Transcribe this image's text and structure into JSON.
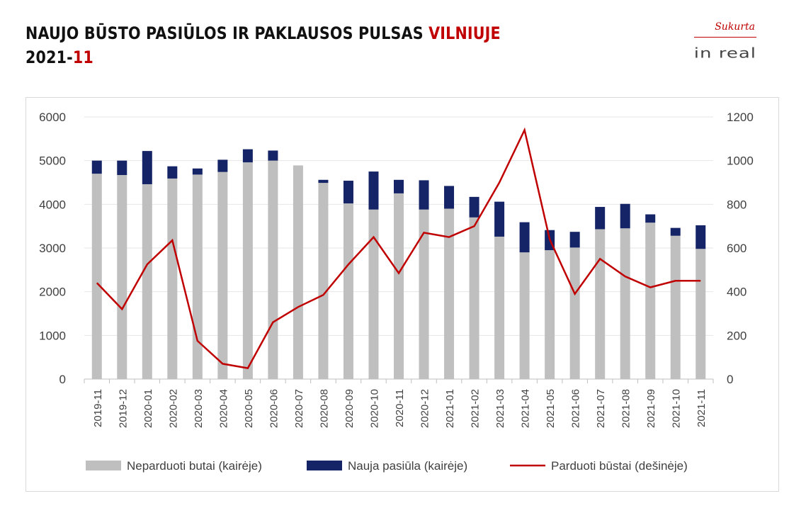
{
  "title": {
    "line1_main": "NAUJO BŪSTO PASIŪLOS IR PAKLAUSOS PULSAS ",
    "line1_accent": "VILNIUJE",
    "line2_main": "2021-",
    "line2_accent": "11"
  },
  "logo": {
    "top_text": "Sukurta",
    "bottom_text": "in real"
  },
  "colors": {
    "unsold": "#bfbfbf",
    "new_supply": "#152466",
    "sold_line": "#c00000",
    "accent": "#c00000",
    "axis_text": "#404040"
  },
  "chart_data": {
    "type": "bar",
    "categories": [
      "2019-11",
      "2019-12",
      "2020-01",
      "2020-02",
      "2020-03",
      "2020-04",
      "2020-05",
      "2020-06",
      "2020-07",
      "2020-08",
      "2020-09",
      "2020-10",
      "2020-11",
      "2020-12",
      "2021-01",
      "2021-02",
      "2021-03",
      "2021-04",
      "2021-05",
      "2021-06",
      "2021-07",
      "2021-08",
      "2021-09",
      "2021-10",
      "2021-11"
    ],
    "series": [
      {
        "name": "Neparduoti butai (kairėje)",
        "kind": "stacked-bar",
        "axis": "left",
        "values": [
          4700,
          4670,
          4460,
          4590,
          4680,
          4740,
          4960,
          5000,
          4890,
          4490,
          4020,
          3880,
          4250,
          3880,
          3900,
          3700,
          3260,
          2900,
          2950,
          3010,
          3430,
          3450,
          3580,
          3280,
          2980
        ]
      },
      {
        "name": "Nauja pasiūla (kairėje)",
        "kind": "stacked-bar",
        "axis": "left",
        "values": [
          300,
          330,
          760,
          280,
          140,
          280,
          300,
          230,
          0,
          70,
          520,
          870,
          310,
          670,
          520,
          470,
          800,
          690,
          460,
          360,
          510,
          560,
          190,
          180,
          540
        ]
      },
      {
        "name": "Parduoti būstai (dešinėje)",
        "kind": "line",
        "axis": "right",
        "values": [
          440,
          320,
          525,
          635,
          175,
          70,
          50,
          260,
          330,
          385,
          525,
          650,
          485,
          670,
          650,
          700,
          900,
          1140,
          640,
          390,
          550,
          470,
          420,
          450,
          450
        ]
      }
    ],
    "y_left": {
      "min": 0,
      "max": 6000,
      "ticks": [
        "0",
        "1000",
        "2000",
        "3000",
        "4000",
        "5000",
        "6000"
      ]
    },
    "y_right": {
      "min": 0,
      "max": 1200,
      "ticks": [
        "0",
        "200",
        "400",
        "600",
        "800",
        "1000",
        "1200"
      ]
    },
    "xlabel": "",
    "ylabel": "",
    "grid": true,
    "legend_position": "bottom"
  }
}
